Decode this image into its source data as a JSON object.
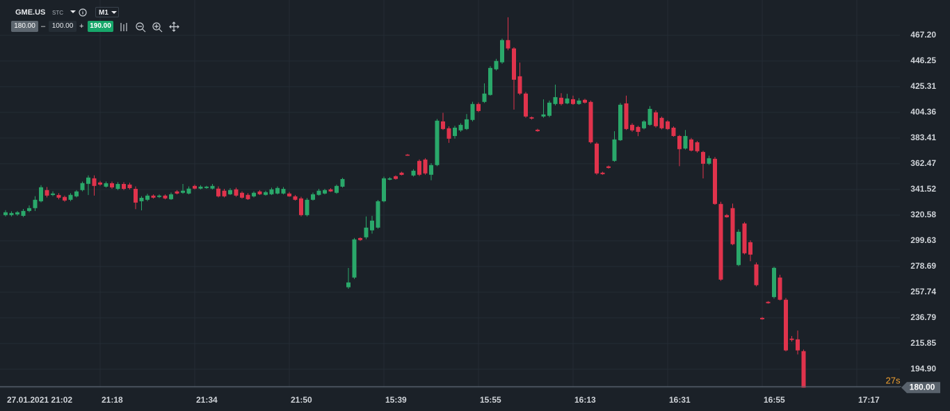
{
  "toolbar": {
    "symbol": "GME.US",
    "market": "STC",
    "timeframe": "M1",
    "sell": "180.00",
    "minus": "–",
    "amount": "100.00",
    "plus": "+",
    "buy": "190.00"
  },
  "chart_data": {
    "type": "candlestick",
    "up_color": "#2aa86a",
    "down_color": "#e0334c",
    "grid": true,
    "categories": [
      "27.01.2021 21:02",
      null,
      null,
      null,
      null,
      null,
      null,
      null,
      null,
      null,
      null,
      null,
      null,
      null,
      null,
      null,
      "21:18",
      null,
      null,
      null,
      null,
      null,
      null,
      null,
      null,
      null,
      null,
      null,
      null,
      null,
      null,
      null,
      "21:34",
      null,
      null,
      null,
      null,
      null,
      null,
      null,
      null,
      null,
      null,
      null,
      null,
      null,
      null,
      null,
      "21:50",
      null,
      null,
      null,
      null,
      null,
      null,
      null,
      null,
      null,
      null,
      null,
      null,
      null,
      null,
      null,
      "15:39",
      null,
      null,
      null,
      null,
      null,
      null,
      null,
      null,
      null,
      null,
      null,
      null,
      null,
      null,
      null,
      "15:55",
      null,
      null,
      null,
      null,
      null,
      null,
      null,
      null,
      null,
      null,
      null,
      null,
      null,
      null,
      null,
      "16:13",
      null,
      null,
      null,
      null,
      null,
      null,
      null,
      null,
      null,
      null,
      null,
      null,
      null,
      null,
      null,
      "16:31",
      null,
      null,
      null,
      null,
      null,
      null,
      null,
      null,
      null,
      null,
      null,
      null,
      null,
      null,
      null,
      "16:55",
      null,
      null,
      null,
      null,
      null,
      null,
      null,
      null,
      null,
      null,
      null,
      null,
      null,
      null,
      null,
      "17:17"
    ],
    "open": [
      320.6,
      320.6,
      321.2,
      320,
      324,
      326.3,
      331.9,
      341,
      337,
      337,
      335.4,
      333.1,
      335.9,
      341,
      346.1,
      350.6,
      347.2,
      343.8,
      346.6,
      342,
      346,
      345.5,
      342,
      331.9,
      333.1,
      336.5,
      335.4,
      336.5,
      333.6,
      339.9,
      338.8,
      338.2,
      344.4,
      342.2,
      342.7,
      342.2,
      342.2,
      340.5,
      337.6,
      341.6,
      338.8,
      337.1,
      335.9,
      339.9,
      337.1,
      337.6,
      338.2,
      338.2,
      338.2,
      335.9,
      334.2,
      320.6,
      333.1,
      337.1,
      338.2,
      341.6,
      338.8,
      343.8,
      261.8,
      269.7,
      301.9,
      302.5,
      308.2,
      310.4,
      331.9,
      349.5,
      352.3,
      355.2,
      369.9,
      352.9,
      364.8,
      365.9,
      353.5,
      361.4,
      397,
      391.4,
      385.1,
      389.7,
      390.8,
      398.2,
      411.2,
      412.9,
      418.6,
      439.5,
      445.2,
      463.3,
      456.5,
      433.8,
      419.7,
      400.4,
      390.2,
      401,
      401.6,
      411.2,
      416.3,
      411.7,
      415.1,
      411.2,
      414.6,
      412.9,
      378.9,
      355.2,
      360.3,
      364.8,
      381.7,
      411.7,
      394.2,
      392.5,
      391.4,
      394.2,
      404.4,
      399.9,
      397,
      391.9,
      385.1,
      374.9,
      382.3,
      380,
      372.1,
      362.5,
      366.5,
      329.7,
      320.6,
      326.3,
      279.9,
      313.8,
      298.5,
      280.4,
      236.8,
      249.9,
      253.8,
      269.7,
      251.6,
      219.9,
      219.3,
      209.7,
      null,
      null,
      null,
      null,
      null,
      null,
      null,
      null,
      null
    ],
    "high": [
      324.6,
      323.7,
      324,
      325.6,
      328.5,
      336,
      345,
      343.5,
      340,
      338.5,
      336.5,
      338.5,
      341,
      348,
      353,
      353,
      348.5,
      348,
      348,
      347.5,
      347.5,
      347,
      344,
      336,
      338,
      337.5,
      337.5,
      337.5,
      339,
      341,
      346,
      344,
      345.5,
      345,
      344.5,
      346,
      344,
      342,
      342.5,
      343,
      340,
      338.5,
      340,
      341,
      340.5,
      343,
      344,
      343.5,
      339.5,
      337,
      335.5,
      334.5,
      339,
      342,
      342,
      342.5,
      345.5,
      351,
      277.5,
      302,
      302.5,
      319.5,
      320,
      333,
      352,
      351.5,
      353,
      356,
      370.5,
      358,
      366,
      367,
      363,
      399,
      404,
      393,
      393.5,
      395.5,
      403,
      413,
      412.5,
      428,
      442,
      448,
      464.5,
      481.9,
      457.5,
      445,
      421,
      401,
      391,
      415,
      414,
      427,
      420,
      419.5,
      418,
      416,
      415.5,
      414,
      380,
      356,
      361,
      389,
      412,
      418,
      395.5,
      393.5,
      398,
      409.5,
      406,
      401,
      398,
      393,
      386,
      390,
      383.5,
      381,
      373,
      369,
      368,
      331.5,
      321.5,
      330,
      309,
      315,
      300,
      282,
      237.5,
      250.5,
      278.5,
      272,
      253,
      222,
      226.5,
      211,
      null,
      null,
      null,
      null,
      null,
      null,
      null,
      null,
      null
    ],
    "low": [
      319.5,
      319.5,
      320,
      319,
      323,
      324,
      331,
      335,
      336,
      333.5,
      331.5,
      332,
      335,
      340,
      337,
      336.5,
      344.5,
      343,
      342,
      341,
      341,
      341.5,
      325.5,
      324.5,
      332,
      334,
      334.5,
      333.5,
      333,
      337.5,
      338,
      337.5,
      341.5,
      341.5,
      342,
      341.5,
      335,
      335,
      337,
      335.5,
      334,
      333,
      335,
      337,
      336.5,
      337,
      337.5,
      337.5,
      335.5,
      332.5,
      319.5,
      319.5,
      332.5,
      336.5,
      337.5,
      339.5,
      338,
      343,
      260.5,
      268.5,
      299.5,
      301,
      305.5,
      309.5,
      331,
      349,
      349.5,
      353,
      369,
      352,
      352.5,
      353.5,
      349,
      360.5,
      390,
      379.5,
      383,
      388.5,
      390,
      397,
      404.5,
      412,
      418,
      438.5,
      444,
      455,
      406.6,
      418.5,
      400,
      398.5,
      388.5,
      400,
      400.5,
      410,
      410,
      411,
      410.5,
      410.5,
      411.5,
      379,
      353.5,
      353.5,
      358.5,
      364,
      381,
      390,
      388.5,
      385,
      390.5,
      393.5,
      392,
      390.5,
      390,
      384.5,
      360.5,
      374,
      372.5,
      371.5,
      350.5,
      361.5,
      329,
      267,
      318.5,
      296,
      279,
      288.5,
      283,
      262.5,
      235.3,
      248.4,
      252.5,
      251,
      209.5,
      217.5,
      207,
      180,
      null,
      null,
      null,
      null,
      null,
      null,
      null,
      null,
      null
    ],
    "close": [
      322.9,
      322.3,
      322.9,
      324,
      326.3,
      333.1,
      343.3,
      336.5,
      338.2,
      334.8,
      332.5,
      337.1,
      339.9,
      346.7,
      351.2,
      344.4,
      345.5,
      346.6,
      343.2,
      346,
      342,
      342.6,
      330.8,
      334.7,
      336.5,
      334.8,
      336.5,
      334.2,
      337.6,
      338.2,
      340.5,
      342.2,
      342.2,
      343.8,
      343.8,
      344.4,
      335.9,
      335.9,
      341,
      336.5,
      334.8,
      333.6,
      338.8,
      337.6,
      339.3,
      341.6,
      342.7,
      342,
      335.9,
      333.1,
      320.6,
      333.1,
      337.6,
      340.5,
      341,
      339.9,
      344.4,
      350,
      265.7,
      300.8,
      300.3,
      310.4,
      316.1,
      331.9,
      350.6,
      350.6,
      350.1,
      353.4,
      369.3,
      356.8,
      353.5,
      354.6,
      361.4,
      397.6,
      390.8,
      382.9,
      391.9,
      394.2,
      398.7,
      411.2,
      405.5,
      419.7,
      440.6,
      446.3,
      463.3,
      456.5,
      431,
      419.7,
      401,
      399.3,
      389.1,
      402.7,
      412.3,
      416.8,
      411.2,
      415.7,
      411.2,
      414,
      412.3,
      380,
      354.6,
      354,
      359.1,
      382.3,
      410.6,
      390.8,
      389.7,
      388.5,
      397,
      407.2,
      393.1,
      391.4,
      390.8,
      385.1,
      374.4,
      385.1,
      373.2,
      372.7,
      362.5,
      367,
      329.7,
      268,
      318.9,
      296.9,
      307,
      289.5,
      288.4,
      263.5,
      235.7,
      248.8,
      277.6,
      251.6,
      210.3,
      218.8,
      210.3,
      180,
      null,
      null,
      null,
      null,
      null,
      null,
      null,
      null,
      null
    ],
    "ylim": [
      179,
      496
    ],
    "yticks": [
      {
        "value": 194.9,
        "label": "194.90"
      },
      215.85,
      236.79,
      257.74,
      278.69,
      299.63,
      320.58,
      341.52,
      362.47,
      383.41,
      404.36,
      425.31,
      446.25,
      {
        "value": 467.2,
        "label": "467.20"
      }
    ],
    "current_price": {
      "value": 180,
      "label": "180.00"
    },
    "countdown": "27s"
  }
}
